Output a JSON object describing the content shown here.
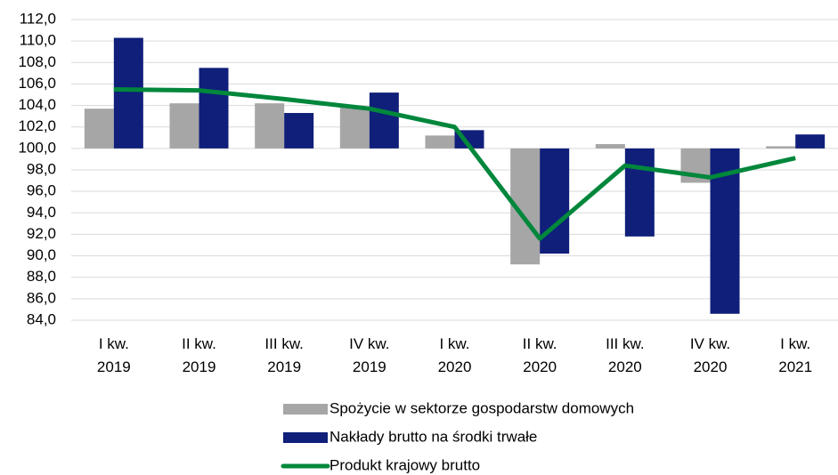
{
  "chart_data": {
    "type": "bar",
    "categories": [
      "I kw.\n2019",
      "II kw.\n2019",
      "III kw.\n2019",
      "IV kw.\n2019",
      "I kw.\n2020",
      "II kw.\n2020",
      "III kw.\n2020",
      "IV kw.\n2020",
      "I kw.\n2021"
    ],
    "baseline": 100,
    "series": [
      {
        "name": "Spożycie w sektorze gospodarstw domowych",
        "type": "bar",
        "color": "#a6a6a6",
        "values": [
          103.7,
          104.2,
          104.2,
          103.9,
          101.2,
          89.2,
          100.4,
          96.8,
          100.2
        ]
      },
      {
        "name": "Nakłady brutto na środki trwałe",
        "type": "bar",
        "color": "#0f1f7a",
        "values": [
          110.3,
          107.5,
          103.3,
          105.2,
          101.7,
          90.2,
          91.8,
          84.6,
          101.3
        ]
      },
      {
        "name": "Produkt krajowy brutto",
        "type": "line",
        "color": "#00873c",
        "values": [
          105.5,
          105.4,
          104.6,
          103.7,
          102.0,
          91.6,
          98.4,
          97.3,
          99.1
        ]
      }
    ],
    "ylim": [
      84,
      112
    ],
    "yticks": [
      {
        "value": 84,
        "label": "84,0"
      },
      {
        "value": 86,
        "label": "86,0"
      },
      {
        "value": 88,
        "label": "88,0"
      },
      {
        "value": 90,
        "label": "90,0"
      },
      {
        "value": 92,
        "label": "92,0"
      },
      {
        "value": 94,
        "label": "94,0"
      },
      {
        "value": 96,
        "label": "96,0"
      },
      {
        "value": 98,
        "label": "98,0"
      },
      {
        "value": 100,
        "label": "100,0"
      },
      {
        "value": 102,
        "label": "102,0"
      },
      {
        "value": 104,
        "label": "104,0"
      },
      {
        "value": 106,
        "label": "106,0"
      },
      {
        "value": 108,
        "label": "108,0"
      },
      {
        "value": 110,
        "label": "110,0"
      },
      {
        "value": 112,
        "label": "112,0"
      }
    ],
    "grid": true
  }
}
